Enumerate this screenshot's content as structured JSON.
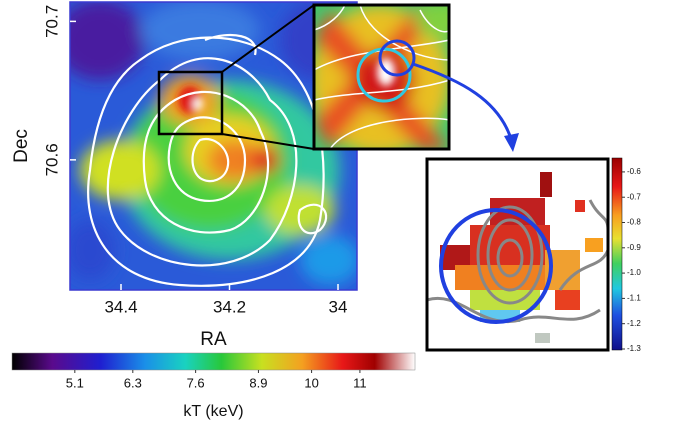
{
  "chart_data": [
    {
      "type": "heatmap",
      "xlabel": "RA",
      "ylabel": "Dec",
      "xlim": [
        34.494,
        33.965
      ],
      "xticks": [
        34.4,
        34.2,
        34.0
      ],
      "ylim": [
        70.506,
        70.714
      ],
      "yticks": [
        70.6,
        70.7
      ]
    },
    {
      "type": "colorbar",
      "orientation": "horizontal",
      "label": "kT (keV)",
      "xlim": [
        3.8,
        12.14
      ],
      "xticks": [
        5.1,
        6.3,
        7.6,
        8.9,
        10,
        11
      ]
    },
    {
      "type": "colorbar",
      "orientation": "vertical",
      "ylim": [
        -1.304,
        -0.545
      ],
      "yticks": [
        -0.6,
        -0.7,
        -0.8,
        -0.9,
        {
          "value": -1,
          "label": "-1.0"
        },
        -1.1,
        -1.2,
        -1.3
      ]
    }
  ]
}
